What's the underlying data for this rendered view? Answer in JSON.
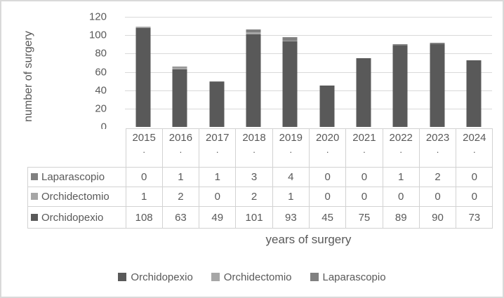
{
  "colors": {
    "text": "#595959",
    "gridline": "#d9d9d9",
    "table_border": "#d2d2d2",
    "frame_border": "#d9d9d9",
    "background": "#ffffff"
  },
  "chart_data": {
    "type": "bar",
    "stacked": true,
    "title": "",
    "xlabel": "years of surgery",
    "ylabel": "number of surgery",
    "ylim": [
      0,
      120
    ],
    "ytick_step": 20,
    "grid": true,
    "legend_position": "bottom",
    "categories": [
      "2015",
      "2016",
      "2017",
      "2018",
      "2019",
      "2020",
      "2021",
      "2022",
      "2023",
      "2024"
    ],
    "category_suffix": ".",
    "series": [
      {
        "name": "Orchidopexio",
        "color": "#595959",
        "values": [
          108,
          63,
          49,
          101,
          93,
          45,
          75,
          89,
          90,
          73
        ]
      },
      {
        "name": "Orchidectomio",
        "color": "#a6a6a6",
        "values": [
          1,
          2,
          0,
          2,
          1,
          0,
          0,
          0,
          0,
          0
        ]
      },
      {
        "name": "Laparascopio",
        "color": "#808080",
        "values": [
          0,
          1,
          1,
          3,
          4,
          0,
          0,
          1,
          2,
          0
        ]
      }
    ],
    "stack_order_bottom_to_top": [
      "Orchidopexio",
      "Orchidectomio",
      "Laparascopio"
    ],
    "data_table_row_order_top_to_bottom": [
      "Laparascopio",
      "Orchidectomio",
      "Orchidopexio"
    ],
    "legend_order": [
      "Orchidopexio",
      "Orchidectomio",
      "Laparascopio"
    ]
  }
}
